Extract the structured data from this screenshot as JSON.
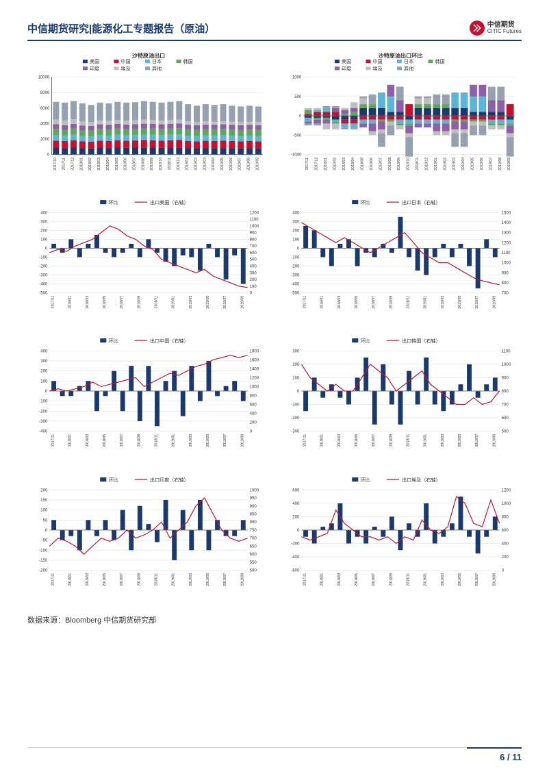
{
  "header": {
    "title": "中信期货研究|能源化工专题报告（原油）"
  },
  "logo": {
    "cn": "中信期货",
    "en": "CITIC Futures"
  },
  "dates_long": [
    "2017/10",
    "2017/11",
    "2017/12",
    "2018/01",
    "2018/02",
    "2018/03",
    "2018/04",
    "2018/05",
    "2018/06",
    "2018/07",
    "2018/08",
    "2018/09",
    "2018/10",
    "2018/11",
    "2018/12",
    "2019/01",
    "2019/02",
    "2019/03",
    "2019/04",
    "2019/05",
    "2019/06",
    "2019/07",
    "2019/08",
    "2019/09"
  ],
  "dates_short": [
    "2017/11",
    "2018/01",
    "2018/03",
    "2018/05",
    "2018/07",
    "2018/09",
    "2018/11",
    "2019/01",
    "2019/03",
    "2019/05",
    "2019/07",
    "2019/09"
  ],
  "colors": {
    "navy": "#1a3a6e",
    "red": "#c8102e",
    "cyan": "#5bb5d9",
    "green": "#5ea85e",
    "purple": "#8e5ea8",
    "greyL": "#bfbfbf",
    "greyM": "#95a0b0",
    "grid": "#d9d9d9",
    "axis": "#666"
  },
  "legend_full": [
    "美国",
    "中国",
    "日本",
    "韩国",
    "印度",
    "埃及",
    "其他"
  ],
  "top_left": {
    "title": "沙特原油出口",
    "ylim": [
      0,
      10000
    ],
    "ystep": 2000,
    "stack": [
      [
        900,
        1800,
        2500,
        3300,
        3900,
        4500,
        6800
      ],
      [
        850,
        1750,
        2450,
        3200,
        3800,
        4400,
        6700
      ],
      [
        900,
        1850,
        2550,
        3350,
        3950,
        4550,
        6900
      ],
      [
        850,
        1700,
        2400,
        3150,
        3750,
        4300,
        6600
      ],
      [
        800,
        1650,
        2350,
        3100,
        3700,
        4200,
        6400
      ],
      [
        900,
        1800,
        2500,
        3300,
        3900,
        4400,
        6700
      ],
      [
        850,
        1750,
        2450,
        3250,
        3850,
        4350,
        6600
      ],
      [
        900,
        1850,
        2550,
        3350,
        3950,
        4450,
        6800
      ],
      [
        870,
        1780,
        2480,
        3280,
        3880,
        4380,
        6700
      ],
      [
        900,
        1820,
        2520,
        3320,
        3920,
        4420,
        6750
      ],
      [
        920,
        1880,
        2580,
        3380,
        3980,
        4500,
        6900
      ],
      [
        900,
        1850,
        2550,
        3350,
        3950,
        4450,
        6800
      ],
      [
        880,
        1800,
        2500,
        3300,
        3900,
        4400,
        6700
      ],
      [
        900,
        1850,
        2550,
        3350,
        3950,
        4450,
        6800
      ],
      [
        920,
        1900,
        2600,
        3400,
        4000,
        4500,
        6900
      ],
      [
        850,
        1750,
        2450,
        3250,
        3850,
        4300,
        6500
      ],
      [
        820,
        1700,
        2400,
        3200,
        3800,
        4200,
        6300
      ],
      [
        850,
        1780,
        2480,
        3280,
        3880,
        4300,
        6500
      ],
      [
        830,
        1750,
        2450,
        3250,
        3850,
        4250,
        6400
      ],
      [
        850,
        1800,
        2500,
        3300,
        3900,
        4300,
        6500
      ],
      [
        820,
        1750,
        2450,
        3250,
        3850,
        4250,
        6300
      ],
      [
        800,
        1700,
        2400,
        3200,
        3800,
        4200,
        6200
      ],
      [
        820,
        1750,
        2450,
        3250,
        3850,
        4250,
        6300
      ],
      [
        800,
        1700,
        2400,
        3200,
        3800,
        4200,
        6200
      ]
    ]
  },
  "top_right": {
    "title": "沙特原油出口环比",
    "ylim": [
      -1000,
      1000
    ],
    "ystep": 500,
    "stack": [
      [
        -50,
        -50,
        -50,
        -100,
        -100,
        -100,
        200,
        200,
        200,
        100,
        100,
        -100
      ],
      [
        50,
        100,
        100,
        100,
        -100,
        -100,
        -100,
        -100,
        -100,
        -100,
        -100,
        300
      ],
      [
        -100,
        50,
        100,
        -50,
        -100,
        -100,
        -100,
        -100,
        400,
        400,
        -100,
        -100
      ],
      [
        100,
        -50,
        -50,
        -50,
        50,
        100,
        100,
        100,
        -50,
        -50,
        -50,
        -50
      ],
      [
        -50,
        -100,
        -100,
        100,
        100,
        100,
        -100,
        -200,
        -200,
        300,
        300,
        -200
      ],
      [
        50,
        50,
        -150,
        -150,
        50,
        150,
        150,
        -100,
        -100,
        -100,
        -100,
        -100
      ],
      [
        -50,
        -50,
        50,
        50,
        -50,
        -50,
        50,
        250,
        -350,
        -250,
        350,
        -500
      ],
      [
        100,
        -100,
        -100,
        100,
        100,
        -100,
        100,
        -200,
        200,
        100,
        -350,
        400
      ],
      [
        50,
        -50,
        100,
        -150,
        50,
        50,
        -150,
        150,
        -150,
        -150,
        100,
        -100
      ],
      [
        -100,
        200,
        -200,
        200,
        -100,
        100,
        -100,
        100,
        -100,
        100,
        -200,
        200
      ],
      [
        100,
        -200,
        200,
        -100,
        200,
        -200,
        100,
        -100,
        150,
        -150,
        200,
        -250
      ],
      [
        -150,
        150,
        -100,
        100,
        -150,
        150,
        -150,
        150,
        -200,
        200,
        -100,
        -400
      ]
    ]
  },
  "duals": [
    {
      "label": "出口美国（右轴）",
      "yl": [
        -500,
        400,
        100
      ],
      "yr": [
        0,
        1200,
        100
      ],
      "yr_ticks": [
        0,
        100,
        200,
        300,
        400,
        500,
        600,
        700,
        800,
        900,
        1000,
        1100,
        1200
      ],
      "bar": [
        50,
        -50,
        100,
        -100,
        50,
        150,
        -50,
        -100,
        -50,
        50,
        -100,
        100,
        -50,
        -150,
        -200,
        -80,
        -100,
        -250,
        50,
        -100,
        -350,
        -80,
        -400
      ],
      "line": [
        600,
        650,
        620,
        700,
        750,
        800,
        900,
        1000,
        950,
        850,
        800,
        700,
        650,
        500,
        450,
        400,
        350,
        300,
        350,
        250,
        200,
        150,
        100,
        80
      ]
    },
    {
      "label": "出口日本（右轴）",
      "yl": [
        -500,
        400,
        100
      ],
      "yr": [
        700,
        1500,
        100
      ],
      "yr_ticks": [
        700,
        800,
        900,
        1000,
        1100,
        1200,
        1300,
        1400,
        1500
      ],
      "bar": [
        250,
        200,
        -100,
        -200,
        50,
        100,
        -200,
        -50,
        -100,
        50,
        -50,
        350,
        -100,
        -250,
        -300,
        -100,
        50,
        -100,
        50,
        -200,
        -450,
        100,
        -100
      ],
      "line": [
        1400,
        1350,
        1300,
        1250,
        1200,
        1250,
        1200,
        1150,
        1100,
        1150,
        1200,
        1250,
        1300,
        1200,
        1100,
        1050,
        1000,
        1000,
        950,
        900,
        850,
        820,
        800,
        780
      ]
    },
    {
      "label": "出口中国（右轴）",
      "yl": [
        -400,
        400,
        100
      ],
      "yr": [
        0,
        1800,
        200
      ],
      "yr_ticks": [
        0,
        200,
        400,
        600,
        800,
        1000,
        1200,
        1400,
        1600,
        1800
      ],
      "bar": [
        100,
        -50,
        -50,
        50,
        100,
        -200,
        -50,
        200,
        -200,
        250,
        -300,
        250,
        -350,
        100,
        200,
        -250,
        250,
        -100,
        300,
        -50,
        50,
        100,
        -100
      ],
      "line": [
        900,
        950,
        900,
        950,
        1000,
        1100,
        1000,
        1050,
        1100,
        1150,
        1200,
        1000,
        1100,
        1200,
        1300,
        1250,
        1350,
        1450,
        1500,
        1600,
        1650,
        1700,
        1650,
        1700
      ]
    },
    {
      "label": "出口韩国（右轴）",
      "yl": [
        -300,
        300,
        100
      ],
      "yr": [
        500,
        1100,
        100
      ],
      "yr_ticks": [
        500,
        600,
        700,
        800,
        900,
        1000,
        1100
      ],
      "bar": [
        -150,
        100,
        -50,
        50,
        -50,
        -100,
        100,
        250,
        -250,
        200,
        -100,
        -250,
        150,
        -100,
        250,
        -100,
        -150,
        -100,
        50,
        200,
        -50,
        50,
        100
      ],
      "line": [
        1000,
        900,
        850,
        800,
        850,
        800,
        800,
        900,
        1000,
        950,
        900,
        800,
        850,
        900,
        950,
        850,
        800,
        750,
        700,
        700,
        750,
        700,
        720,
        800
      ]
    },
    {
      "label": "出口印度（右轴）",
      "yl": [
        -200,
        200,
        50
      ],
      "yr": [
        500,
        1000,
        50
      ],
      "yr_ticks": [
        500,
        550,
        600,
        650,
        700,
        750,
        800,
        850,
        900,
        950,
        1000
      ],
      "bar": [
        50,
        -50,
        -30,
        -100,
        50,
        -30,
        50,
        -50,
        100,
        -100,
        120,
        30,
        -60,
        150,
        -150,
        100,
        -100,
        150,
        -100,
        50,
        -30,
        -30,
        50
      ],
      "line": [
        650,
        700,
        680,
        650,
        600,
        650,
        700,
        680,
        700,
        750,
        700,
        720,
        750,
        800,
        700,
        750,
        800,
        900,
        950,
        850,
        750,
        700,
        680,
        700
      ]
    },
    {
      "label": "出口埃及（右轴）",
      "yl": [
        -600,
        600,
        200
      ],
      "yr": [
        0,
        1200,
        200
      ],
      "yr_ticks": [
        0,
        200,
        400,
        600,
        800,
        1000,
        1200
      ],
      "bar": [
        -100,
        -200,
        50,
        100,
        400,
        -200,
        -100,
        -200,
        50,
        -100,
        200,
        -300,
        100,
        -100,
        400,
        -200,
        -100,
        100,
        500,
        -100,
        -350,
        -100,
        200
      ],
      "line": [
        500,
        450,
        500,
        550,
        900,
        700,
        600,
        500,
        500,
        450,
        500,
        400,
        500,
        450,
        750,
        600,
        550,
        650,
        1100,
        1000,
        700,
        650,
        1050,
        700
      ]
    }
  ],
  "source": "数据来源：Bloomberg 中信期货研究部",
  "page": {
    "current": "6",
    "sep": " / ",
    "total": "11"
  }
}
